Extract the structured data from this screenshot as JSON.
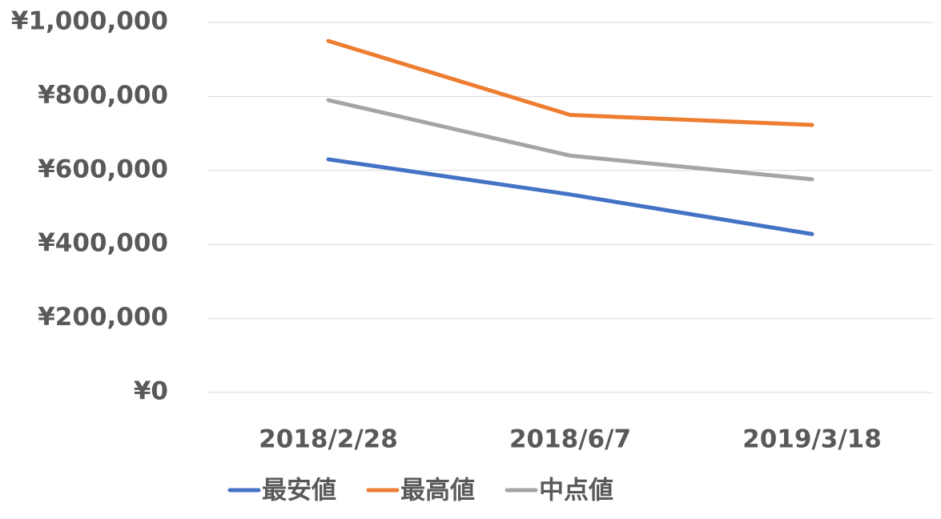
{
  "chart_data": {
    "type": "line",
    "categories": [
      "2018/2/28",
      "2018/6/7",
      "2019/3/18"
    ],
    "series": [
      {
        "name": "最安値",
        "color": "#4472c4",
        "values": [
          630000,
          535000,
          428000
        ]
      },
      {
        "name": "最高値",
        "color": "#ed7d31",
        "values": [
          950000,
          750000,
          723000
        ]
      },
      {
        "name": "中点値",
        "color": "#a5a5a5",
        "values": [
          790000,
          640000,
          576000
        ]
      }
    ],
    "ylim": [
      0,
      1000000
    ],
    "yticks": [
      {
        "value": 0,
        "label": "¥0"
      },
      {
        "value": 200000,
        "label": "¥200,000"
      },
      {
        "value": 400000,
        "label": "¥400,000"
      },
      {
        "value": 600000,
        "label": "¥600,000"
      },
      {
        "value": 800000,
        "label": "¥800,000"
      },
      {
        "value": 1000000,
        "label": "¥1,000,000"
      }
    ],
    "grid": true,
    "legend": "bottom"
  }
}
